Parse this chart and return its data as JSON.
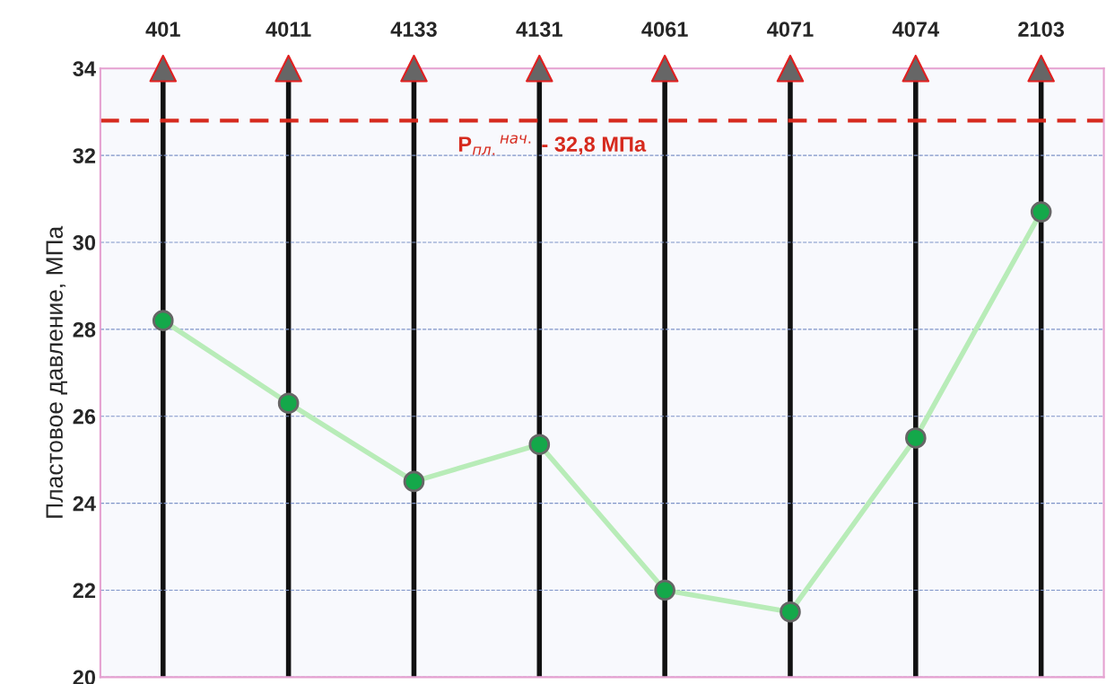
{
  "chart_data": {
    "type": "line",
    "ylabel": "Пластовое давление, МПа",
    "categories": [
      "401",
      "4011",
      "4133",
      "4131",
      "4061",
      "4071",
      "4074",
      "2103"
    ],
    "series": [
      {
        "color": "#b8ecb8",
        "values": [
          28.2,
          26.3,
          24.5,
          25.35,
          22.0,
          21.5,
          25.5,
          30.7
        ]
      }
    ],
    "marker": "circle",
    "ylim": [
      20,
      34
    ],
    "yticks": [
      20,
      22,
      24,
      26,
      28,
      30,
      32,
      34
    ],
    "grid": true,
    "ref_lines": [
      {
        "axis": "y",
        "value": 32.8,
        "label": "P$_{пл.}$$^{нач.}$ - 32,8 МПа",
        "color": "#d62a1e",
        "line_style": "dashed"
      }
    ]
  }
}
